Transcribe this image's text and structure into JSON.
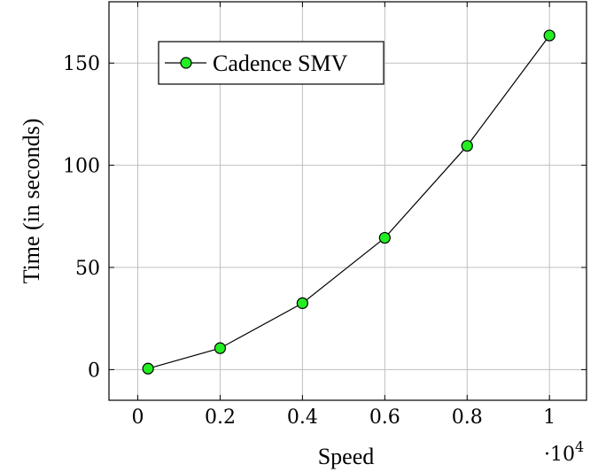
{
  "chart_data": {
    "type": "line",
    "xlabel": "Speed",
    "ylabel": "Time (in seconds)",
    "x_multiplier_label": "·10",
    "x_multiplier_exponent": "4",
    "xlim": [
      -0.07,
      1.09
    ],
    "ylim": [
      -15,
      180
    ],
    "xticks": [
      0,
      0.2,
      0.4,
      0.6,
      0.8,
      1
    ],
    "xtick_labels": [
      "0",
      "0.2",
      "0.4",
      "0.6",
      "0.8",
      "1"
    ],
    "yticks": [
      0,
      50,
      100,
      150
    ],
    "ytick_labels": [
      "0",
      "50",
      "100",
      "150"
    ],
    "grid": true,
    "legend_position": "top-left",
    "series": [
      {
        "name": "Cadence SMV",
        "color": "#22ee22",
        "x": [
          0.025,
          0.2,
          0.4,
          0.6,
          0.8,
          1.0
        ],
        "y": [
          0.5,
          10.5,
          32.5,
          64.5,
          109.5,
          163.5
        ]
      }
    ]
  }
}
